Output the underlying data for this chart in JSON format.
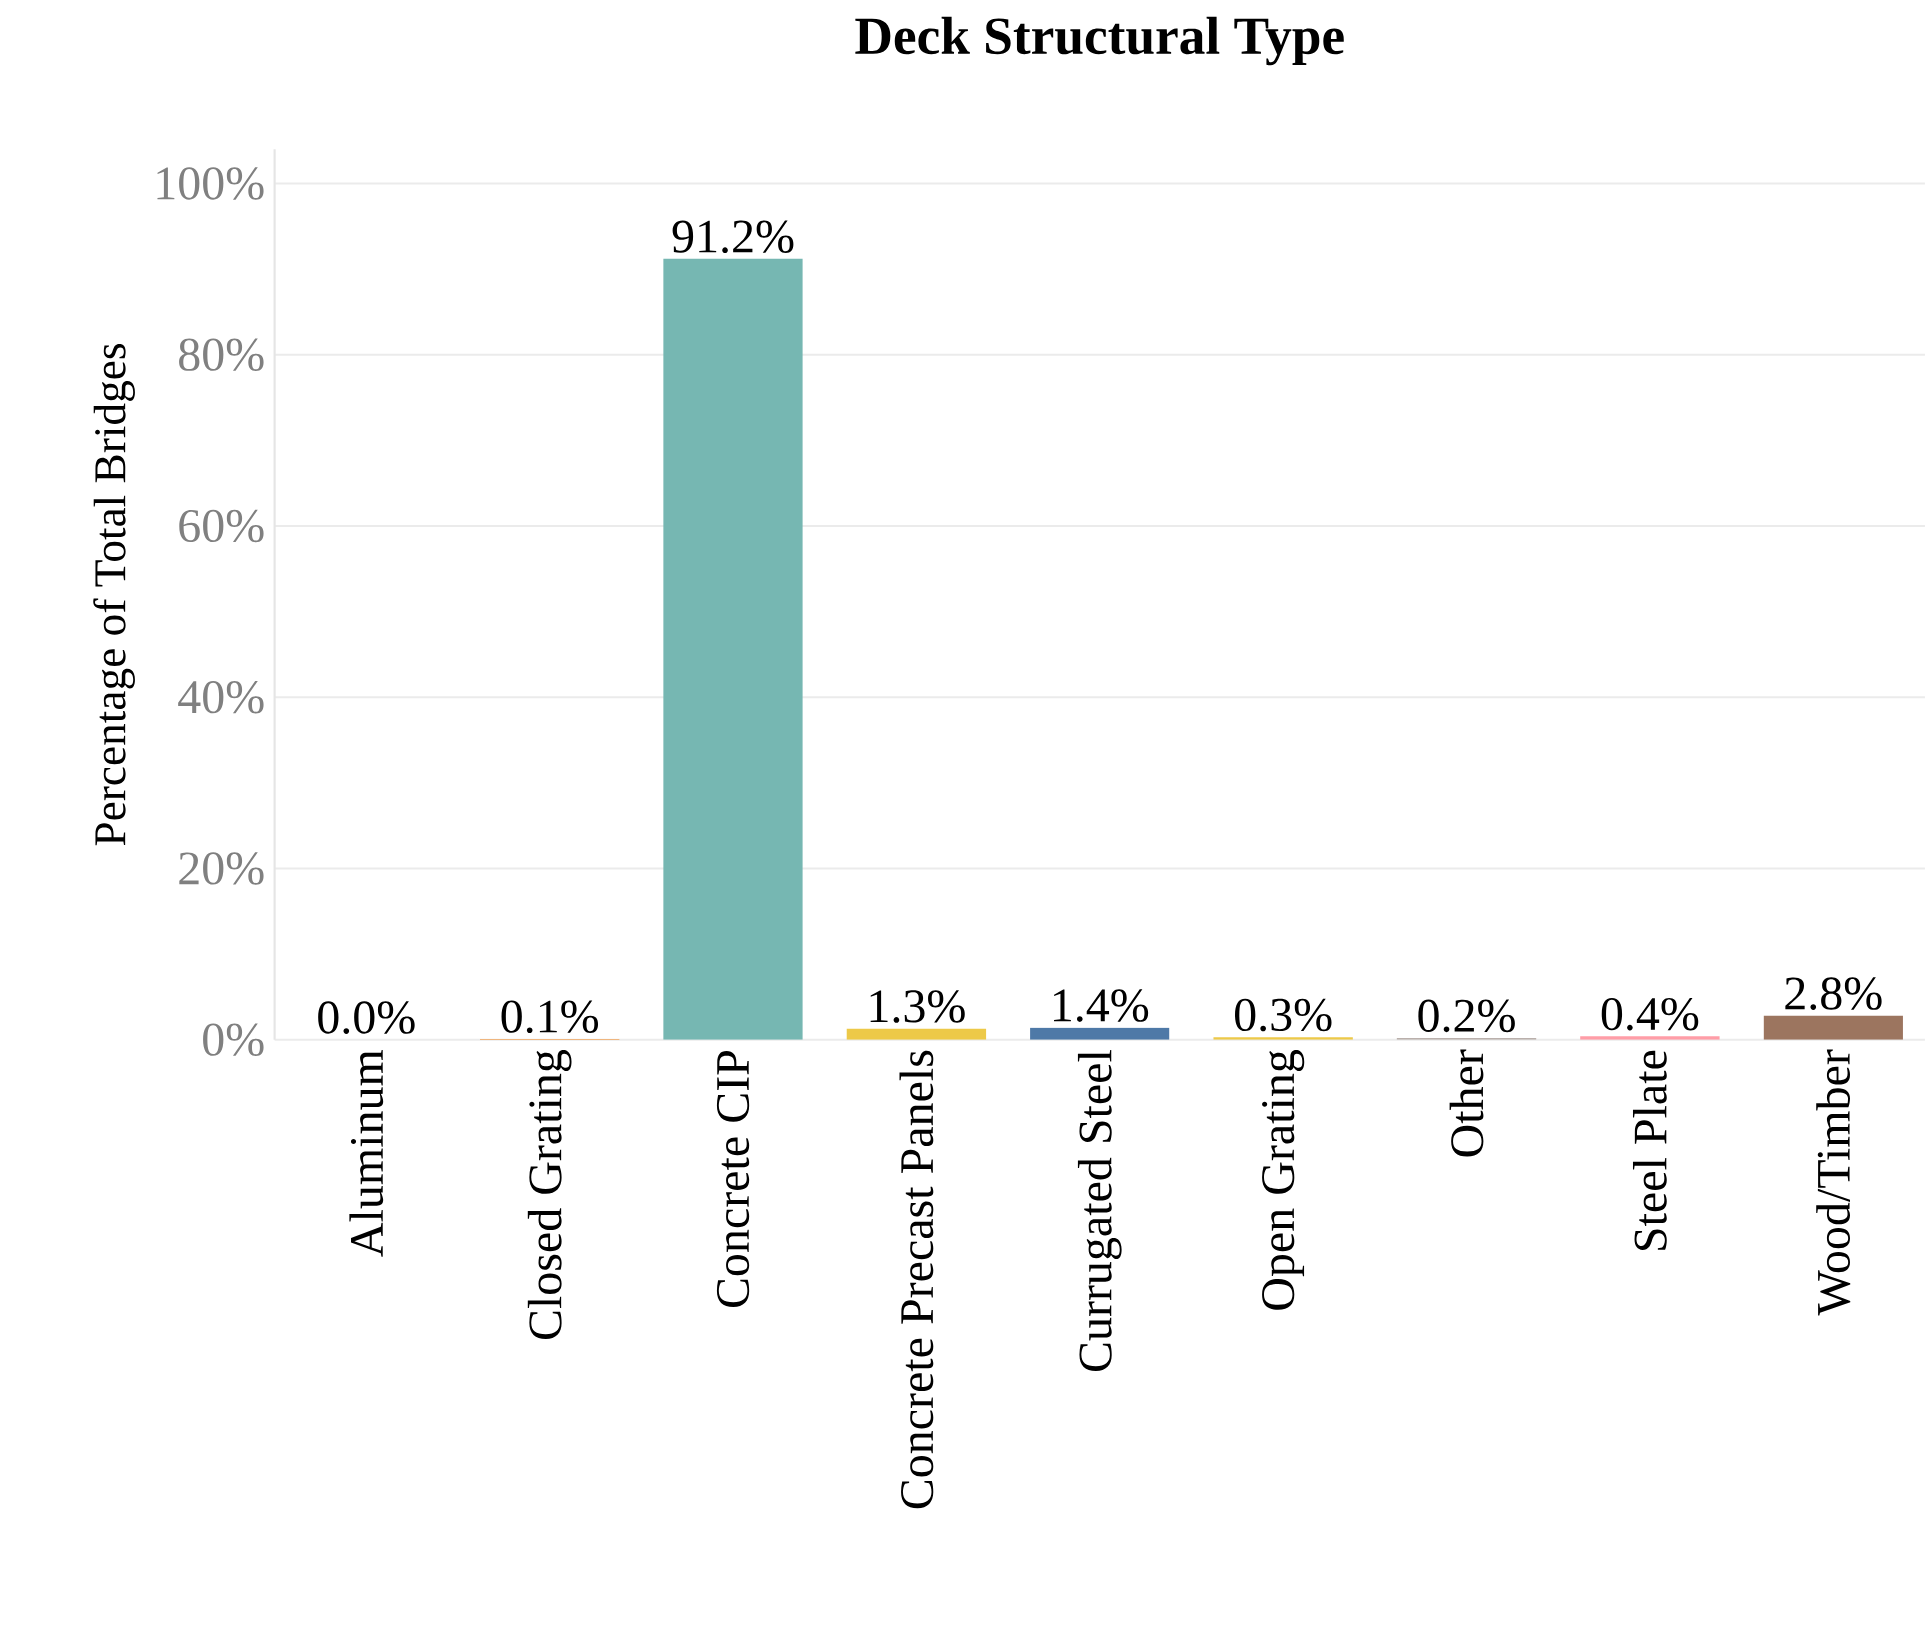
{
  "chart_data": {
    "type": "bar",
    "title": "Deck Structural Type",
    "ylabel": "Percentage of Total Bridges",
    "categories": [
      "Aluminum",
      "Closed Grating",
      "Concrete CIP",
      "Concrete Precast Panels",
      "Currugated Steel",
      "Open Grating",
      "Other",
      "Steel Plate",
      "Wood/Timber"
    ],
    "values": [
      0.0,
      0.1,
      91.2,
      1.3,
      1.4,
      0.3,
      0.2,
      0.4,
      2.8
    ],
    "colors": [
      "#e15759",
      "#f28e2b",
      "#76b7b2",
      "#edc948",
      "#4e79a7",
      "#edc948",
      "#bab0ac",
      "#ff9da7",
      "#9c755f"
    ],
    "value_labels": [
      "0.0%",
      "0.1%",
      "91.2%",
      "1.3%",
      "1.4%",
      "0.3%",
      "0.2%",
      "0.4%",
      "2.8%"
    ],
    "ylim": [
      0,
      104
    ],
    "yticks": [
      {
        "value": 0,
        "label": "0%"
      },
      {
        "value": 20,
        "label": "20%"
      },
      {
        "value": 40,
        "label": "40%"
      },
      {
        "value": 60,
        "label": "60%"
      },
      {
        "value": 80,
        "label": "80%"
      },
      {
        "value": 100,
        "label": "100%"
      }
    ],
    "grid": "y"
  }
}
